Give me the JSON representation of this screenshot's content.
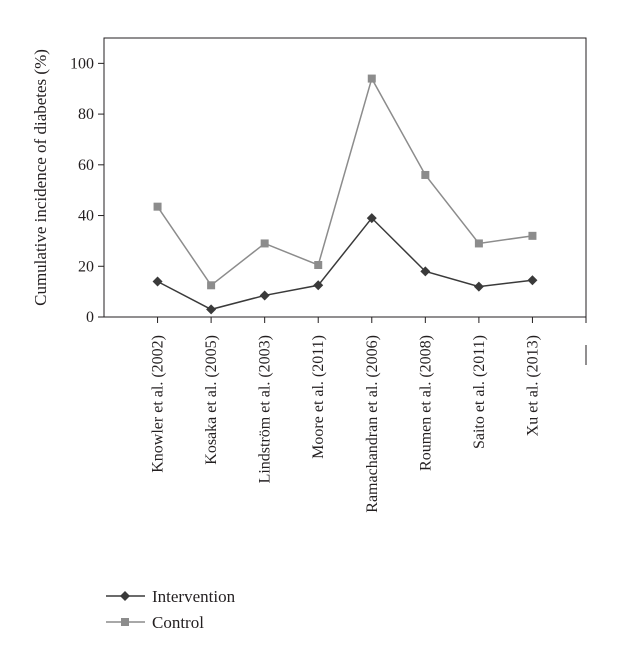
{
  "chart_data": {
    "type": "line",
    "title": "",
    "xlabel": "",
    "ylabel": "Cumulative incidence of diabetes (%)",
    "ylim": [
      0,
      110
    ],
    "yticks": [
      0,
      20,
      40,
      60,
      80,
      100
    ],
    "categories": [
      "Knowler et al. (2002)",
      "Kosaka et al. (2005)",
      "Lindström et al. (2003)",
      "Moore et al. (2011)",
      "Ramachandran et al. (2006)",
      "Roumen et al. (2008)",
      "Saito et al. (2011)",
      "Xu et al. (2013)"
    ],
    "series": [
      {
        "name": "Intervention",
        "values": [
          14,
          3,
          8.5,
          12.5,
          39,
          18,
          12,
          14.5
        ],
        "color": "#3a3a3a",
        "marker": "diamond"
      },
      {
        "name": "Control",
        "values": [
          43.5,
          12.5,
          29,
          20.5,
          94,
          56,
          29,
          32
        ],
        "color": "#8c8c8c",
        "marker": "square"
      }
    ],
    "legend_position": "bottom-left",
    "grid": false
  }
}
